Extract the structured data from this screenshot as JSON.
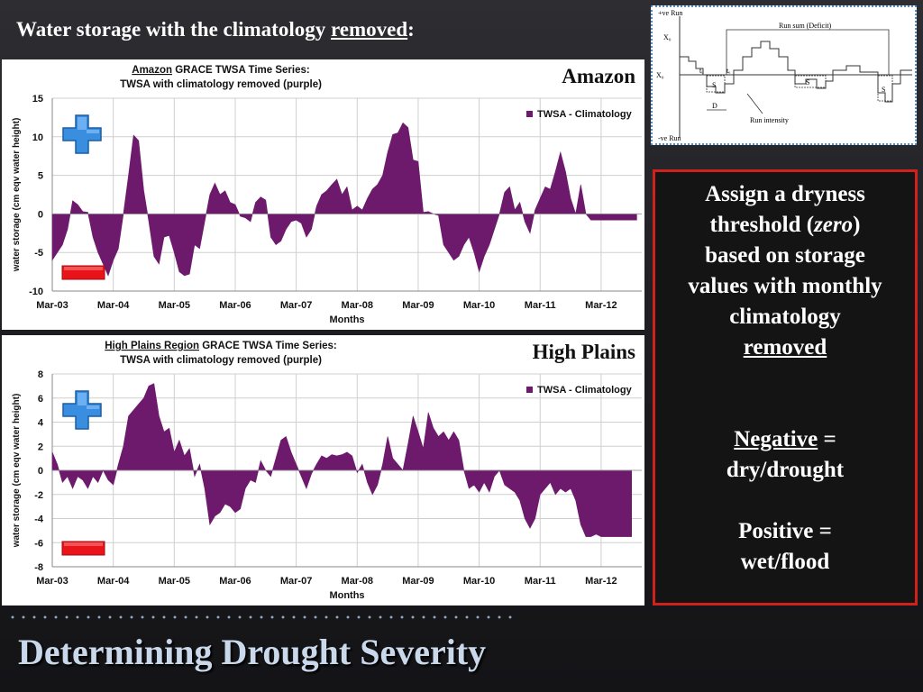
{
  "slide": {
    "title_prefix": "Water storage with the climatology ",
    "title_emphasis": "removed",
    "title_suffix": ":",
    "footer_title": "Determining Drought Severity"
  },
  "text_box": {
    "assign_line1": "Assign a dryness",
    "assign_line2_pre": "threshold (",
    "assign_line2_em": "zero",
    "assign_line2_post": ")",
    "assign_line3": "based on storage",
    "assign_line4": "values with monthly",
    "assign_line5": "climatology",
    "assign_line6": "removed",
    "negative_label": "Negative",
    "negative_rest": " =",
    "negative_meaning": "dry/drought",
    "positive_label": "Positive =",
    "positive_meaning": "wet/flood"
  },
  "run_diagram": {
    "pos_run": "+ve Run",
    "neg_run": "-ve Run",
    "x_c": "X₀",
    "x_0": "X₀",
    "run_sum": "Run sum (Deficit)",
    "run_intensity": "Run intensity",
    "duration": "D",
    "t_i": "tᵢ",
    "t_e": "tₑ",
    "box_label": "S"
  },
  "chart_data": [
    {
      "type": "area",
      "panel_label": "Amazon",
      "title_underlined": "Amazon",
      "title_rest": " GRACE TWSA Time Series:",
      "subtitle": "TWSA with climatology removed (purple)",
      "xlabel": "Months",
      "ylabel": "water storage (cm eqv water height)",
      "ylim": [
        -10,
        15
      ],
      "yticks": [
        "15",
        "10",
        "5",
        "0",
        "-5",
        "-10"
      ],
      "ytick_values": [
        15,
        10,
        5,
        0,
        -5,
        -10
      ],
      "xticks": [
        "Mar-03",
        "Mar-04",
        "Mar-05",
        "Mar-06",
        "Mar-07",
        "Mar-08",
        "Mar-09",
        "Mar-10",
        "Mar-11",
        "Mar-12"
      ],
      "grid": true,
      "legend": "TWSA - Climatology",
      "legend_position": "top-right",
      "color": "#6d1a6d",
      "series": [
        {
          "x": [
            0,
            1,
            2,
            3,
            4,
            5,
            6,
            7,
            8,
            9,
            10,
            11,
            12,
            13,
            14,
            15,
            16,
            17,
            18,
            19,
            20,
            21,
            22,
            23,
            24,
            25,
            26,
            27,
            28,
            29,
            30,
            31,
            32,
            33,
            34,
            35,
            36,
            37,
            38,
            39,
            40,
            41,
            42,
            43,
            44,
            45,
            46,
            47,
            48,
            49,
            50,
            51,
            52,
            53,
            54,
            55,
            56,
            57,
            58,
            59,
            60,
            61,
            62,
            63,
            64,
            65,
            66,
            67,
            68,
            69,
            70,
            71,
            72,
            73,
            74,
            75,
            76,
            77,
            78,
            79,
            80,
            81,
            82,
            83,
            84,
            85,
            86,
            87,
            88,
            89,
            90,
            91,
            92,
            93,
            94,
            95,
            96,
            97,
            98,
            99,
            100,
            101,
            102,
            103,
            104,
            105,
            106,
            107,
            108,
            109,
            110,
            111,
            112,
            113,
            114,
            115
          ],
          "values": [
            -6,
            -5,
            -4,
            -2,
            1.7,
            1.2,
            0.3,
            0.2,
            -3,
            -5,
            -6.5,
            -8,
            -6,
            -4.5,
            0,
            5,
            10.2,
            9.5,
            3,
            -1,
            -5.5,
            -6.5,
            -3,
            -2.8,
            -5,
            -7.5,
            -8,
            -7.8,
            -4,
            -4.5,
            -1,
            2.5,
            4,
            2.5,
            3,
            1.5,
            1.2,
            -0.3,
            -0.5,
            -1,
            1.5,
            2.2,
            1.8,
            -3,
            -4,
            -3.5,
            -2,
            -1,
            -0.8,
            -1.2,
            -3,
            -2,
            1,
            2.5,
            3,
            3.8,
            4.5,
            2.5,
            3.5,
            0.5,
            1,
            0.5,
            2,
            3.2,
            3.8,
            5,
            8,
            10.3,
            10.5,
            11.8,
            11.2,
            7,
            6.8,
            0.2,
            0.3,
            0,
            -0.2,
            -4,
            -5,
            -6,
            -5.5,
            -4,
            -3,
            -5,
            -7.5,
            -5.5,
            -4,
            -2,
            0,
            2.8,
            3.5,
            0.5,
            1.5,
            -1,
            -2.5,
            0.5,
            2,
            3.5,
            3.2,
            5.5,
            8,
            5.5,
            2,
            0,
            3.8,
            0,
            -0.8,
            -0.8,
            -0.8,
            -0.8,
            -0.8,
            -0.8,
            -0.8,
            -0.8,
            -0.8,
            -0.8
          ]
        }
      ]
    },
    {
      "type": "area",
      "panel_label": "High Plains",
      "title_underlined": "High Plains Region",
      "title_rest": " GRACE TWSA Time Series:",
      "subtitle": "TWSA with climatology removed (purple)",
      "xlabel": "Months",
      "ylabel": "water storage (cm eqv water height)",
      "ylim": [
        -8,
        8
      ],
      "yticks": [
        "8",
        "6",
        "4",
        "2",
        "0",
        "-2",
        "-4",
        "-6",
        "-8"
      ],
      "ytick_values": [
        8,
        6,
        4,
        2,
        0,
        -2,
        -4,
        -6,
        -8
      ],
      "xticks": [
        "Mar-03",
        "Mar-04",
        "Mar-05",
        "Mar-06",
        "Mar-07",
        "Mar-08",
        "Mar-09",
        "Mar-10",
        "Mar-11",
        "Mar-12"
      ],
      "grid": true,
      "legend": "TWSA - Climatology",
      "legend_position": "top-right",
      "color": "#6d1a6d",
      "series": [
        {
          "x": [
            0,
            1,
            2,
            3,
            4,
            5,
            6,
            7,
            8,
            9,
            10,
            11,
            12,
            13,
            14,
            15,
            16,
            17,
            18,
            19,
            20,
            21,
            22,
            23,
            24,
            25,
            26,
            27,
            28,
            29,
            30,
            31,
            32,
            33,
            34,
            35,
            36,
            37,
            38,
            39,
            40,
            41,
            42,
            43,
            44,
            45,
            46,
            47,
            48,
            49,
            50,
            51,
            52,
            53,
            54,
            55,
            56,
            57,
            58,
            59,
            60,
            61,
            62,
            63,
            64,
            65,
            66,
            67,
            68,
            69,
            70,
            71,
            72,
            73,
            74,
            75,
            76,
            77,
            78,
            79,
            80,
            81,
            82,
            83,
            84,
            85,
            86,
            87,
            88,
            89,
            90,
            91,
            92,
            93,
            94,
            95,
            96,
            97,
            98,
            99,
            100,
            101,
            102,
            103,
            104,
            105,
            106,
            107,
            108,
            109,
            110,
            111,
            112,
            113,
            114
          ],
          "values": [
            1.5,
            0.5,
            -1,
            -0.5,
            -1.5,
            -0.5,
            -0.8,
            -1.5,
            -0.5,
            -1,
            0,
            -0.8,
            -1.2,
            0.5,
            2,
            4.5,
            5,
            5.5,
            6,
            7,
            7.2,
            4.5,
            3.2,
            3.5,
            1.5,
            2.5,
            1.2,
            1.8,
            -0.5,
            0.5,
            -1.5,
            -4.5,
            -3.8,
            -3.5,
            -2.8,
            -3,
            -3.5,
            -3.2,
            -1.5,
            -0.8,
            -1,
            0.8,
            0,
            -0.5,
            1,
            2.5,
            2.8,
            1.5,
            0.5,
            -0.5,
            -1.5,
            -0.3,
            0.5,
            1.2,
            1,
            1.3,
            1.2,
            1.3,
            1.5,
            1.2,
            -0.2,
            0.5,
            -1,
            -2,
            -1.2,
            0.5,
            2.8,
            1,
            0.5,
            0,
            2.2,
            4.5,
            3.2,
            1.8,
            4.8,
            3.5,
            2.8,
            3.2,
            2.5,
            3.2,
            2.5,
            0,
            -1.5,
            -1.2,
            -1.8,
            -1,
            -1.8,
            -0.5,
            0,
            -1.2,
            -1.5,
            -1.8,
            -2.5,
            -4,
            -4.8,
            -4,
            -2,
            -1.5,
            -1,
            -2,
            -1.5,
            -1.8,
            -1.5,
            -2.5,
            -4.5,
            -5.5,
            -5.5,
            -5.3,
            -5.5,
            -5.5,
            -5.5,
            -5.5,
            -5.5,
            -5.5,
            -5.5
          ]
        }
      ]
    }
  ]
}
